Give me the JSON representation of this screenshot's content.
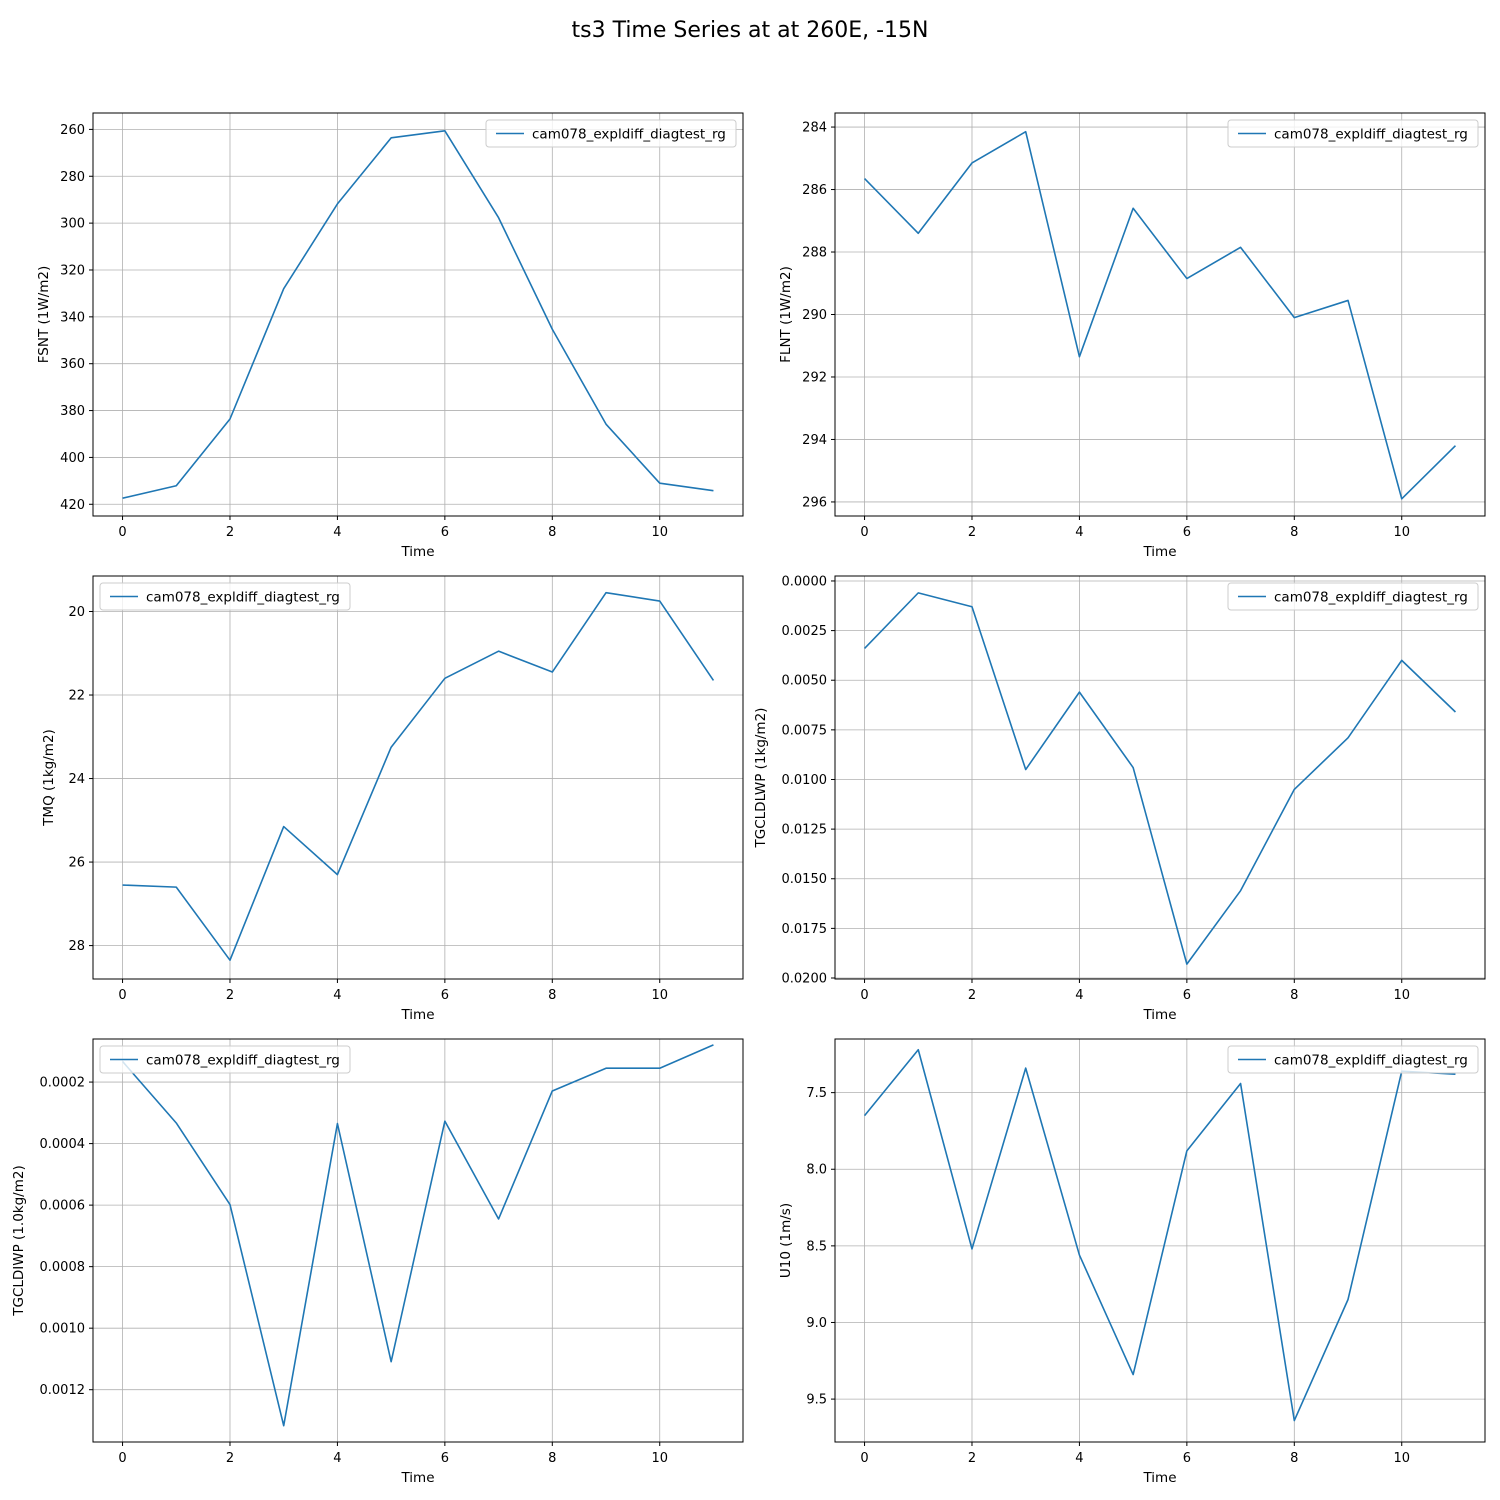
{
  "figure": {
    "title": "ts3 Time Series at at 260E, -15N"
  },
  "chart_data": [
    {
      "type": "line",
      "title": "",
      "xlabel": "Time",
      "ylabel": "FSNT (1W/m2)",
      "xlim": [
        -0.55,
        11.55
      ],
      "ylim": [
        425,
        253
      ],
      "y_inverted": true,
      "xticks": [
        0,
        2,
        4,
        6,
        8,
        10
      ],
      "yticks": [
        260,
        280,
        300,
        320,
        340,
        360,
        380,
        400,
        420
      ],
      "ytick_labels": [
        "260",
        "280",
        "300",
        "320",
        "340",
        "360",
        "380",
        "400",
        "420"
      ],
      "grid": true,
      "legend_position": "upper right",
      "series": [
        {
          "name": "cam078_expldiff_diagtest_rg",
          "color": "#1f77b4",
          "x": [
            0,
            1,
            2,
            3,
            4,
            5,
            6,
            7,
            8,
            9,
            10,
            11
          ],
          "values": [
            417.4,
            412.1,
            383.6,
            328.0,
            291.8,
            263.6,
            260.6,
            297.7,
            345.3,
            385.8,
            411.0,
            414.2
          ]
        }
      ]
    },
    {
      "type": "line",
      "title": "",
      "xlabel": "Time",
      "ylabel": "FLNT (1W/m2)",
      "xlim": [
        -0.55,
        11.55
      ],
      "ylim": [
        296.45,
        283.55
      ],
      "y_inverted": true,
      "xticks": [
        0,
        2,
        4,
        6,
        8,
        10
      ],
      "yticks": [
        284,
        286,
        288,
        290,
        292,
        294,
        296
      ],
      "ytick_labels": [
        "284",
        "286",
        "288",
        "290",
        "292",
        "294",
        "296"
      ],
      "grid": true,
      "legend_position": "upper right",
      "series": [
        {
          "name": "cam078_expldiff_diagtest_rg",
          "color": "#1f77b4",
          "x": [
            0,
            1,
            2,
            3,
            4,
            5,
            6,
            7,
            8,
            9,
            10,
            11
          ],
          "values": [
            285.65,
            287.4,
            285.15,
            284.15,
            291.35,
            286.6,
            288.85,
            287.85,
            290.1,
            289.55,
            295.9,
            294.2
          ]
        }
      ]
    },
    {
      "type": "line",
      "title": "",
      "xlabel": "Time",
      "ylabel": "TMQ (1kg/m2)",
      "xlim": [
        -0.55,
        11.55
      ],
      "ylim": [
        28.8,
        19.15
      ],
      "y_inverted": true,
      "xticks": [
        0,
        2,
        4,
        6,
        8,
        10
      ],
      "yticks": [
        20,
        22,
        24,
        26,
        28
      ],
      "ytick_labels": [
        "20",
        "22",
        "24",
        "26",
        "28"
      ],
      "grid": true,
      "legend_position": "upper left",
      "series": [
        {
          "name": "cam078_expldiff_diagtest_rg",
          "color": "#1f77b4",
          "x": [
            0,
            1,
            2,
            3,
            4,
            5,
            6,
            7,
            8,
            9,
            10,
            11
          ],
          "values": [
            26.55,
            26.6,
            28.35,
            25.15,
            26.3,
            23.25,
            21.6,
            20.95,
            21.45,
            19.55,
            19.75,
            21.65
          ]
        }
      ]
    },
    {
      "type": "line",
      "title": "",
      "xlabel": "Time",
      "ylabel": "TGCLDLWP (1kg/m2)",
      "xlim": [
        -0.55,
        11.55
      ],
      "ylim": [
        0.02005,
        -0.00025
      ],
      "y_inverted": true,
      "xticks": [
        0,
        2,
        4,
        6,
        8,
        10
      ],
      "yticks": [
        0.0,
        0.0025,
        0.005,
        0.0075,
        0.01,
        0.0125,
        0.015,
        0.0175,
        0.02
      ],
      "ytick_labels": [
        "0.0000",
        "0.0025",
        "0.0050",
        "0.0075",
        "0.0100",
        "0.0125",
        "0.0150",
        "0.0175",
        "0.0200"
      ],
      "grid": true,
      "legend_position": "upper right",
      "series": [
        {
          "name": "cam078_expldiff_diagtest_rg",
          "color": "#1f77b4",
          "x": [
            0,
            1,
            2,
            3,
            4,
            5,
            6,
            7,
            8,
            9,
            10,
            11
          ],
          "values": [
            0.0034,
            0.0006,
            0.0013,
            0.0095,
            0.0056,
            0.0094,
            0.0193,
            0.0156,
            0.0105,
            0.0079,
            0.004,
            0.0066
          ]
        }
      ]
    },
    {
      "type": "line",
      "title": "",
      "xlabel": "Time",
      "ylabel": "TGCLDIWP (1.0kg/m2)",
      "xlim": [
        -0.55,
        11.55
      ],
      "ylim": [
        0.00137,
        6e-05
      ],
      "y_inverted": true,
      "xticks": [
        0,
        2,
        4,
        6,
        8,
        10
      ],
      "yticks": [
        0.0002,
        0.0004,
        0.0006,
        0.0008,
        0.001,
        0.0012
      ],
      "ytick_labels": [
        "0.0002",
        "0.0004",
        "0.0006",
        "0.0008",
        "0.0010",
        "0.0012"
      ],
      "grid": true,
      "legend_position": "upper left",
      "series": [
        {
          "name": "cam078_expldiff_diagtest_rg",
          "color": "#1f77b4",
          "x": [
            0,
            1,
            2,
            3,
            4,
            5,
            6,
            7,
            8,
            9,
            10,
            11
          ],
          "values": [
            0.000133,
            0.000333,
            0.000598,
            0.001317,
            0.000335,
            0.001109,
            0.000327,
            0.000645,
            0.000229,
            0.000155,
            0.000155,
            7.9e-05
          ]
        }
      ]
    },
    {
      "type": "line",
      "title": "",
      "xlabel": "Time",
      "ylabel": "U10 (1m/s)",
      "xlim": [
        -0.55,
        11.55
      ],
      "ylim": [
        9.78,
        7.15
      ],
      "y_inverted": true,
      "xticks": [
        0,
        2,
        4,
        6,
        8,
        10
      ],
      "yticks": [
        7.5,
        8.0,
        8.5,
        9.0,
        9.5
      ],
      "ytick_labels": [
        "7.5",
        "8.0",
        "8.5",
        "9.0",
        "9.5"
      ],
      "grid": true,
      "legend_position": "upper right",
      "series": [
        {
          "name": "cam078_expldiff_diagtest_rg",
          "color": "#1f77b4",
          "x": [
            0,
            1,
            2,
            3,
            4,
            5,
            6,
            7,
            8,
            9,
            10,
            11
          ],
          "values": [
            7.65,
            7.22,
            8.52,
            7.34,
            8.56,
            9.34,
            7.88,
            7.44,
            9.64,
            8.85,
            7.36,
            7.38
          ]
        }
      ]
    }
  ]
}
